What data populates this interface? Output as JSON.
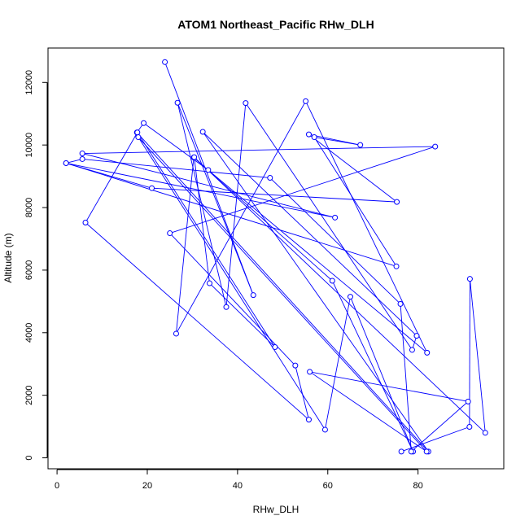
{
  "chart_data": {
    "type": "line",
    "title": "ATOM1 Northeast_Pacific RHw_DLH",
    "xlabel": "RHw_DLH",
    "ylabel": "Altitude (m)",
    "xlim": [
      -2,
      99
    ],
    "ylim": [
      -350,
      13100
    ],
    "xticks": [
      0,
      20,
      40,
      60,
      80
    ],
    "yticks": [
      0,
      2000,
      4000,
      6000,
      8000,
      10000,
      12000
    ],
    "grid": false,
    "color": "#0000ff",
    "series": [
      {
        "marker": "circle",
        "points": [
          [
            23.9,
            12650
          ],
          [
            43.5,
            5200
          ],
          [
            26.7,
            11350
          ],
          [
            37.5,
            4820
          ],
          [
            41.8,
            11340
          ],
          [
            78.7,
            3450
          ],
          [
            79.7,
            3900
          ],
          [
            32.3,
            10420
          ],
          [
            82.3,
            200
          ],
          [
            17.7,
            10400
          ],
          [
            19.2,
            10700
          ],
          [
            33.5,
            9200
          ],
          [
            82.0,
            3360
          ],
          [
            55.1,
            11400
          ],
          [
            26.4,
            3970
          ],
          [
            30.3,
            9600
          ],
          [
            61.0,
            5660
          ],
          [
            78.9,
            200
          ],
          [
            65.0,
            5150
          ],
          [
            59.4,
            900
          ],
          [
            18.0,
            10250
          ],
          [
            81.9,
            200
          ],
          [
            56.0,
            2750
          ],
          [
            91.1,
            1800
          ],
          [
            78.5,
            200
          ],
          [
            76.1,
            4920
          ],
          [
            47.2,
            8950
          ],
          [
            5.6,
            9550
          ],
          [
            2.0,
            9420
          ],
          [
            21.0,
            8620
          ],
          [
            75.3,
            8180
          ],
          [
            55.8,
            10340
          ],
          [
            67.2,
            10000
          ],
          [
            57.0,
            10250
          ],
          [
            75.2,
            6120
          ],
          [
            2.0,
            9420
          ],
          [
            61.6,
            7680
          ],
          [
            5.6,
            9730
          ],
          [
            83.8,
            9950
          ],
          [
            25.0,
            7180
          ],
          [
            52.8,
            2950
          ],
          [
            55.8,
            1220
          ],
          [
            6.3,
            7520
          ],
          [
            17.8,
            10400
          ],
          [
            48.3,
            3540
          ],
          [
            33.8,
            5580
          ],
          [
            30.4,
            9610
          ],
          [
            94.9,
            800
          ],
          [
            91.5,
            5720
          ],
          [
            91.4,
            990
          ],
          [
            76.3,
            200
          ]
        ]
      }
    ]
  }
}
